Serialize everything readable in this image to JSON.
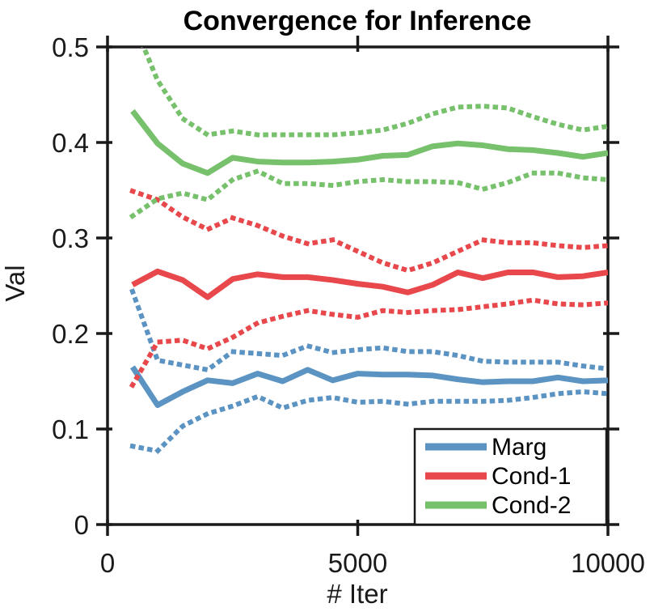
{
  "title": "Convergence for Inference",
  "chart_data": {
    "type": "line",
    "title": "Convergence for Inference",
    "xlabel": "# Iter",
    "ylabel": "Val",
    "xlim": [
      0,
      10000
    ],
    "ylim": [
      0,
      0.5
    ],
    "grid": false,
    "legend_position": "southeast",
    "x_tick_values": [
      0,
      5000,
      10000
    ],
    "x_tick_labels": [
      "0",
      "5000",
      "10000"
    ],
    "y_tick_values": [
      0,
      0.1,
      0.2,
      0.3,
      0.4,
      0.5
    ],
    "y_tick_labels": [
      "0",
      "0.1",
      "0.2",
      "0.3",
      "0.4",
      "0.5"
    ],
    "x": [
      500,
      1000,
      1500,
      2000,
      2500,
      3000,
      3500,
      4000,
      4500,
      5000,
      5500,
      6000,
      6500,
      7000,
      7500,
      8000,
      8500,
      9000,
      9500,
      10000
    ],
    "series": [
      {
        "name": "Marg",
        "role": "mean",
        "style": "solid",
        "color": "#5B93C2",
        "values": [
          0.165,
          0.125,
          0.139,
          0.151,
          0.148,
          0.158,
          0.15,
          0.162,
          0.151,
          0.158,
          0.157,
          0.157,
          0.156,
          0.152,
          0.149,
          0.15,
          0.15,
          0.154,
          0.15,
          0.151
        ]
      },
      {
        "name": "Marg",
        "role": "upper-bound",
        "style": "dotted",
        "color": "#5B93C2",
        "values": [
          0.244,
          0.172,
          0.167,
          0.162,
          0.181,
          0.179,
          0.177,
          0.187,
          0.18,
          0.183,
          0.185,
          0.181,
          0.181,
          0.177,
          0.171,
          0.17,
          0.17,
          0.17,
          0.166,
          0.163
        ]
      },
      {
        "name": "Marg",
        "role": "lower-bound",
        "style": "dotted",
        "color": "#5B93C2",
        "values": [
          0.082,
          0.077,
          0.103,
          0.116,
          0.124,
          0.134,
          0.122,
          0.13,
          0.133,
          0.128,
          0.129,
          0.126,
          0.129,
          0.129,
          0.129,
          0.13,
          0.133,
          0.137,
          0.139,
          0.137
        ]
      },
      {
        "name": "Cond-1",
        "role": "mean",
        "style": "solid",
        "color": "#E8484B",
        "values": [
          0.251,
          0.265,
          0.256,
          0.238,
          0.257,
          0.262,
          0.259,
          0.259,
          0.256,
          0.252,
          0.249,
          0.243,
          0.251,
          0.264,
          0.258,
          0.264,
          0.264,
          0.259,
          0.26,
          0.264
        ]
      },
      {
        "name": "Cond-1",
        "role": "upper-bound",
        "style": "dotted",
        "color": "#E8484B",
        "values": [
          0.349,
          0.34,
          0.322,
          0.309,
          0.321,
          0.313,
          0.302,
          0.294,
          0.298,
          0.286,
          0.274,
          0.266,
          0.274,
          0.286,
          0.298,
          0.295,
          0.295,
          0.292,
          0.29,
          0.292
        ]
      },
      {
        "name": "Cond-1",
        "role": "lower-bound",
        "style": "dotted",
        "color": "#E8484B",
        "values": [
          0.146,
          0.191,
          0.193,
          0.184,
          0.196,
          0.211,
          0.218,
          0.224,
          0.22,
          0.217,
          0.224,
          0.222,
          0.224,
          0.225,
          0.228,
          0.231,
          0.235,
          0.231,
          0.23,
          0.232
        ]
      },
      {
        "name": "Cond-2",
        "role": "mean",
        "style": "solid",
        "color": "#77C06C",
        "values": [
          0.433,
          0.399,
          0.378,
          0.368,
          0.384,
          0.38,
          0.379,
          0.379,
          0.38,
          0.382,
          0.386,
          0.387,
          0.396,
          0.399,
          0.397,
          0.393,
          0.392,
          0.389,
          0.385,
          0.389
        ]
      },
      {
        "name": "Cond-2",
        "role": "upper-bound",
        "style": "dotted",
        "color": "#77C06C",
        "values": [
          0.528,
          0.465,
          0.425,
          0.408,
          0.412,
          0.408,
          0.408,
          0.408,
          0.408,
          0.41,
          0.413,
          0.42,
          0.43,
          0.437,
          0.438,
          0.436,
          0.427,
          0.419,
          0.413,
          0.417
        ]
      },
      {
        "name": "Cond-2",
        "role": "lower-bound",
        "style": "dotted",
        "color": "#77C06C",
        "values": [
          0.323,
          0.341,
          0.347,
          0.34,
          0.361,
          0.37,
          0.357,
          0.357,
          0.355,
          0.359,
          0.361,
          0.359,
          0.359,
          0.358,
          0.351,
          0.358,
          0.368,
          0.368,
          0.363,
          0.361
        ]
      }
    ],
    "legend": [
      {
        "label": "Marg",
        "color": "#5B93C2"
      },
      {
        "label": "Cond-1",
        "color": "#E8484B"
      },
      {
        "label": "Cond-2",
        "color": "#77C06C"
      }
    ]
  },
  "colors": {
    "axis": "#1A1A1A",
    "background": "#FFFFFF",
    "marg": "#5B93C2",
    "cond1": "#E8484B",
    "cond2": "#77C06C"
  }
}
